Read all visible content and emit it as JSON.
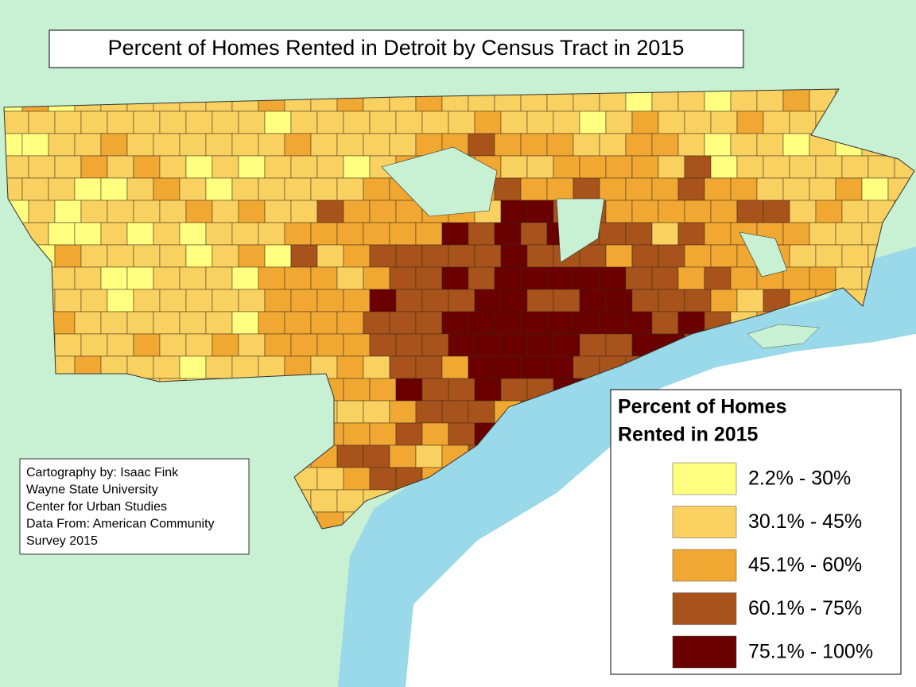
{
  "title": "Percent of Homes Rented in Detroit by Census Tract in 2015",
  "legend": {
    "title_lines": [
      "Percent of Homes",
      "Rented in 2015"
    ],
    "items": [
      {
        "label": "2.2% - 30%",
        "color": "#ffff80"
      },
      {
        "label": "30.1% - 45%",
        "color": "#f9d160"
      },
      {
        "label": "45.1% - 60%",
        "color": "#f0a832"
      },
      {
        "label": "60.1% - 75%",
        "color": "#a8531b"
      },
      {
        "label": "75.1% - 100%",
        "color": "#6b0000"
      }
    ]
  },
  "credits": [
    "Cartography by: Isaac Fink",
    "Wayne State University",
    "Center for Urban Studies",
    "Data From: American Community",
    "Survey 2015"
  ]
}
